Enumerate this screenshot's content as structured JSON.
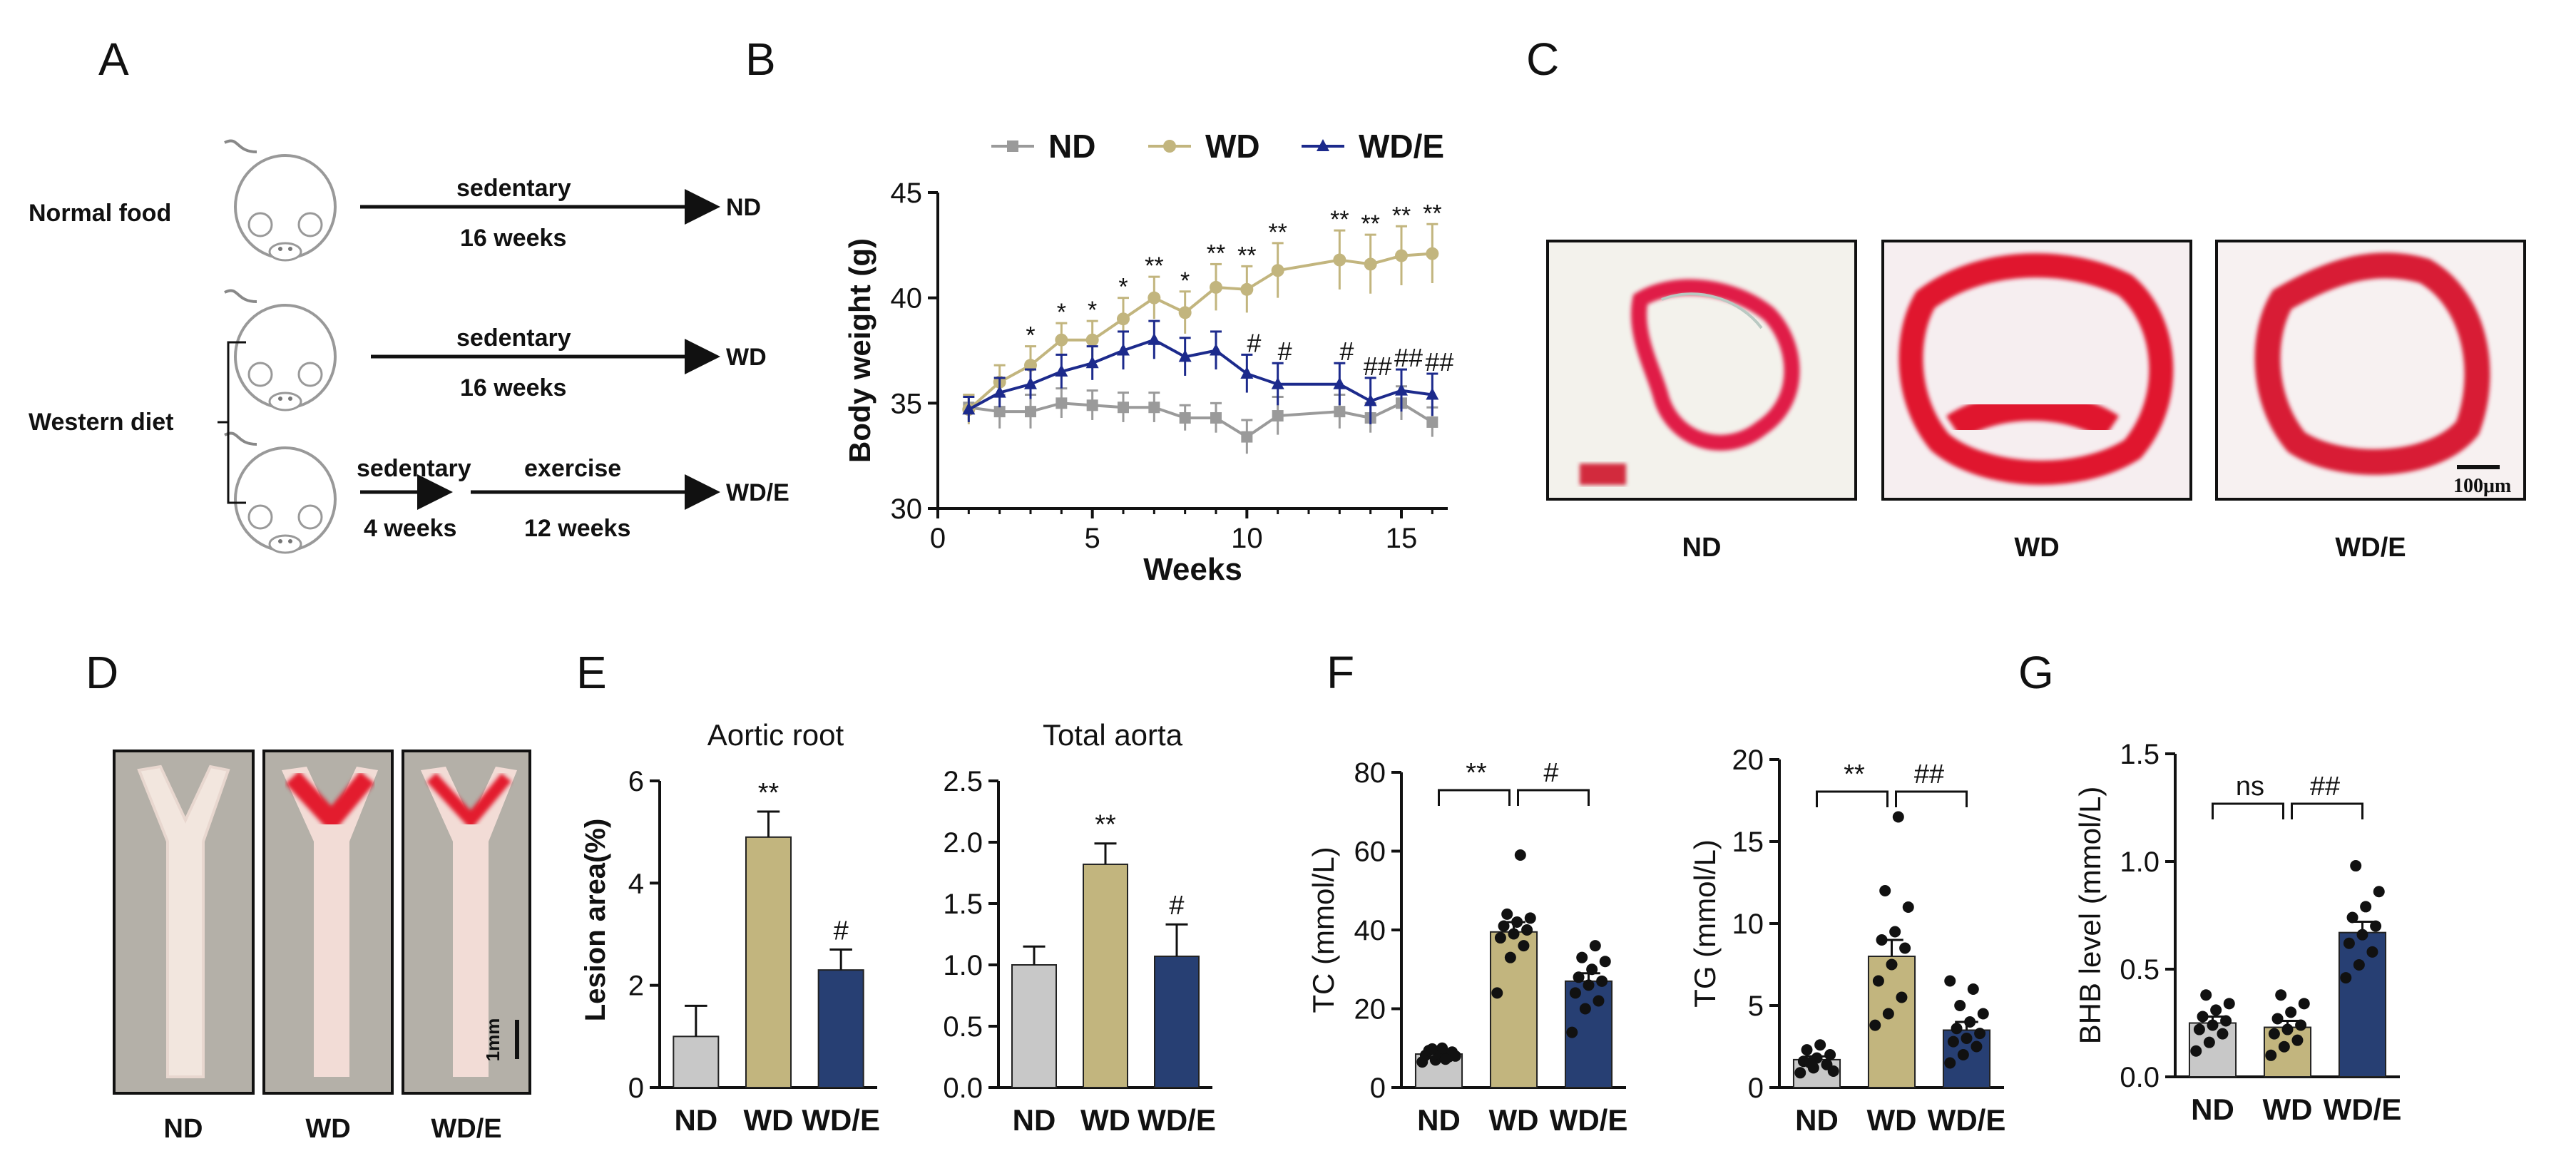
{
  "panels": {
    "a": {
      "letter": "A",
      "rows": [
        {
          "group": "Normal food",
          "top": "sedentary",
          "bottom": "16 weeks",
          "end": "ND"
        },
        {
          "group": "",
          "top": "sedentary",
          "bottom": "16 weeks",
          "end": "WD"
        },
        {
          "group": "Western diet",
          "seg1_top": "sedentary",
          "seg1_bottom": "4 weeks",
          "top": "exercise",
          "bottom": "12 weeks",
          "end": "WD/E"
        }
      ]
    },
    "b": {
      "letter": "B"
    },
    "c": {
      "letter": "C",
      "images": [
        "ND",
        "WD",
        "WD/E"
      ],
      "scale_label": "100μm"
    },
    "d": {
      "letter": "D",
      "images": [
        "ND",
        "WD",
        "WD/E"
      ],
      "scale_label": "1mm"
    },
    "e": {
      "letter": "E",
      "ylabel": "Lesion area(%)"
    },
    "f": {
      "letter": "F"
    },
    "g": {
      "letter": "G"
    }
  },
  "colors": {
    "nd": "#c8c8c8",
    "wd": "#c2b57e",
    "wde": "#273f73",
    "nd_line": "#9a9a9a",
    "wd_line": "#c2b57e",
    "wde_line": "#1c2a8c"
  },
  "chart_data": [
    {
      "id": "body-weight",
      "type": "line",
      "xlabel": "Weeks",
      "ylabel": "Body weight   (g)",
      "xlim": [
        0,
        16.5
      ],
      "ylim": [
        30,
        45
      ],
      "xticks": [
        "0",
        "5",
        "10",
        "15"
      ],
      "yticks": [
        "30",
        "35",
        "40",
        "45"
      ],
      "legend": [
        "ND",
        "WD",
        "WD/E"
      ],
      "x": [
        1,
        2,
        3,
        4,
        5,
        6,
        7,
        8,
        9,
        10,
        11,
        13,
        14,
        15,
        16
      ],
      "series": [
        {
          "name": "ND",
          "values": [
            34.8,
            34.6,
            34.6,
            35.0,
            34.9,
            34.8,
            34.8,
            34.3,
            34.3,
            33.4,
            34.4,
            34.6,
            34.3,
            35.0,
            34.1
          ],
          "errors": [
            0.6,
            0.8,
            0.8,
            0.7,
            0.7,
            0.7,
            0.7,
            0.6,
            0.7,
            0.8,
            0.9,
            0.8,
            0.7,
            0.8,
            0.7
          ]
        },
        {
          "name": "WD",
          "values": [
            34.7,
            36.0,
            36.8,
            38.0,
            38.0,
            39.0,
            40.0,
            39.3,
            40.5,
            40.4,
            41.3,
            41.8,
            41.6,
            42.0,
            42.1
          ],
          "errors": [
            0.7,
            0.8,
            0.9,
            0.8,
            0.9,
            1.0,
            1.0,
            1.0,
            1.1,
            1.1,
            1.3,
            1.4,
            1.4,
            1.4,
            1.4
          ]
        },
        {
          "name": "WD/E",
          "values": [
            34.7,
            35.5,
            35.9,
            36.5,
            36.9,
            37.5,
            38.0,
            37.2,
            37.5,
            36.4,
            35.9,
            35.9,
            35.1,
            35.6,
            35.4
          ],
          "errors": [
            0.6,
            0.7,
            0.7,
            0.8,
            0.8,
            0.9,
            0.9,
            0.9,
            0.9,
            0.9,
            1.0,
            1.0,
            1.1,
            1.0,
            1.0
          ]
        }
      ],
      "annotations_wd": [
        "",
        "",
        "*",
        "*",
        "*",
        "*",
        "**",
        "*",
        "**",
        "**",
        "**",
        "**",
        "**",
        "**",
        "**"
      ],
      "annotations_wde": [
        "",
        "",
        "",
        "",
        "",
        "",
        "",
        "",
        "",
        "#",
        "#",
        "#",
        "##",
        "##",
        "##"
      ]
    },
    {
      "id": "aortic-root",
      "type": "bar",
      "title": "Aortic root",
      "categories": [
        "ND",
        "WD",
        "WD/E"
      ],
      "values": [
        1.0,
        4.9,
        2.3
      ],
      "errors": [
        0.6,
        0.5,
        0.4
      ],
      "ylim": [
        0,
        6
      ],
      "yticks": [
        "0",
        "2",
        "4",
        "6"
      ],
      "ylabel": "Lesion area(%)",
      "marks": [
        "",
        "**",
        "#"
      ]
    },
    {
      "id": "total-aorta",
      "type": "bar",
      "title": "Total aorta",
      "categories": [
        "ND",
        "WD",
        "WD/E"
      ],
      "values": [
        1.0,
        1.82,
        1.07
      ],
      "errors": [
        0.15,
        0.17,
        0.26
      ],
      "ylim": [
        0,
        2.5
      ],
      "yticks": [
        "0.0",
        "0.5",
        "1.0",
        "1.5",
        "2.0",
        "2.5"
      ],
      "ylabel": "",
      "marks": [
        "",
        "**",
        "#"
      ]
    },
    {
      "id": "tc",
      "type": "bar",
      "ylabel": "TC  (mmol/L)",
      "categories": [
        "ND",
        "WD",
        "WD/E"
      ],
      "values": [
        8.5,
        39.5,
        27.0
      ],
      "errors": [
        0.6,
        2.5,
        2.0
      ],
      "ylim": [
        0,
        80
      ],
      "yticks": [
        "0",
        "20",
        "40",
        "60",
        "80"
      ],
      "points": [
        [
          6.5,
          7.0,
          7.8,
          8.2,
          8.5,
          9.0,
          9.4,
          10.0,
          8.0,
          9.8,
          7.2
        ],
        [
          24,
          33,
          36,
          38,
          39,
          40,
          41,
          42,
          43,
          44,
          59
        ],
        [
          14,
          20,
          22,
          24,
          26,
          27,
          28,
          30,
          32,
          33,
          36
        ]
      ],
      "brackets": [
        {
          "label": "**"
        },
        {
          "label": "#"
        }
      ]
    },
    {
      "id": "tg",
      "type": "bar",
      "ylabel": "TG  (mmol/L)",
      "categories": [
        "ND",
        "WD",
        "WD/E"
      ],
      "values": [
        1.7,
        8.0,
        3.5
      ],
      "errors": [
        0.2,
        1.0,
        0.5
      ],
      "ylim": [
        0,
        20
      ],
      "yticks": [
        "0",
        "5",
        "10",
        "15",
        "20"
      ],
      "points": [
        [
          0.9,
          1.2,
          1.4,
          1.6,
          1.8,
          2.0,
          2.3,
          2.6,
          1.0,
          1.5
        ],
        [
          3.8,
          4.5,
          5.5,
          6.5,
          7.5,
          8.5,
          9.0,
          9.5,
          11.0,
          12.0,
          16.5
        ],
        [
          1.5,
          2.0,
          2.5,
          2.8,
          3.0,
          3.3,
          3.6,
          4.0,
          4.5,
          5.0,
          6.0,
          6.5
        ]
      ],
      "brackets": [
        {
          "label": "**"
        },
        {
          "label": "##"
        }
      ]
    },
    {
      "id": "bhb",
      "type": "bar",
      "ylabel": "BHB  level  (mmol/L)",
      "categories": [
        "ND",
        "WD",
        "WD/E"
      ],
      "values": [
        0.25,
        0.23,
        0.67
      ],
      "errors": [
        0.03,
        0.03,
        0.05
      ],
      "ylim": [
        0,
        1.5
      ],
      "yticks": [
        "0.0",
        "0.5",
        "1.0",
        "1.5"
      ],
      "points": [
        [
          0.12,
          0.16,
          0.2,
          0.22,
          0.24,
          0.26,
          0.28,
          0.31,
          0.34,
          0.38
        ],
        [
          0.1,
          0.14,
          0.17,
          0.2,
          0.22,
          0.24,
          0.27,
          0.3,
          0.34,
          0.38
        ],
        [
          0.46,
          0.52,
          0.58,
          0.62,
          0.66,
          0.7,
          0.74,
          0.79,
          0.86,
          0.98
        ]
      ],
      "brackets": [
        {
          "label": "ns"
        },
        {
          "label": "##"
        }
      ]
    }
  ]
}
